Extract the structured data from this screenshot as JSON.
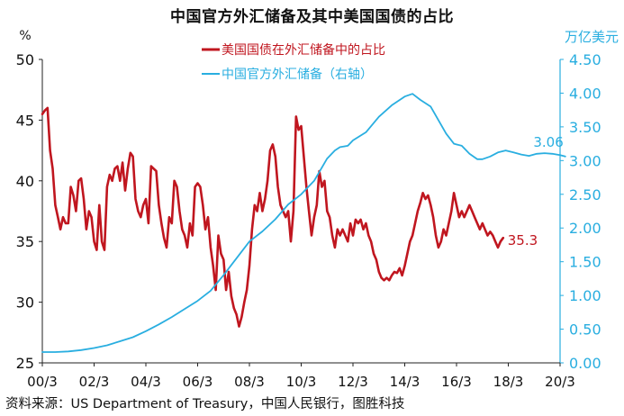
{
  "chart_data": {
    "type": "line",
    "title": "中国官方外汇储备及其中美国国债的占比",
    "left_unit": "%",
    "right_unit": "万亿美元",
    "x_tick_labels": [
      "00/3",
      "02/3",
      "04/3",
      "06/3",
      "08/3",
      "10/3",
      "12/3",
      "14/3",
      "16/3",
      "18/3",
      "20/3"
    ],
    "y_left": {
      "min": 25,
      "max": 50,
      "ticks": [
        "25",
        "30",
        "35",
        "40",
        "45",
        "50"
      ]
    },
    "y_right": {
      "min": 0,
      "max": 4.5,
      "ticks": [
        "0.00",
        "0.50",
        "1.00",
        "1.50",
        "2.00",
        "2.50",
        "3.00",
        "3.50",
        "4.00",
        "4.50"
      ]
    },
    "series": [
      {
        "name": "美国国债在外汇储备中的占比",
        "axis": "left",
        "color": "#c0161f",
        "end_label": "35.3",
        "points": [
          [
            0.0,
            45.5
          ],
          [
            0.1,
            45.8
          ],
          [
            0.2,
            46.0
          ],
          [
            0.3,
            42.5
          ],
          [
            0.4,
            41.0
          ],
          [
            0.5,
            38.0
          ],
          [
            0.6,
            37.0
          ],
          [
            0.7,
            36.0
          ],
          [
            0.8,
            37.0
          ],
          [
            0.9,
            36.5
          ],
          [
            1.0,
            36.5
          ],
          [
            1.1,
            39.5
          ],
          [
            1.2,
            38.8
          ],
          [
            1.3,
            37.5
          ],
          [
            1.4,
            40.0
          ],
          [
            1.5,
            40.2
          ],
          [
            1.6,
            38.5
          ],
          [
            1.7,
            36.0
          ],
          [
            1.8,
            37.5
          ],
          [
            1.9,
            37.0
          ],
          [
            2.0,
            35.0
          ],
          [
            2.1,
            34.3
          ],
          [
            2.2,
            38.0
          ],
          [
            2.3,
            35.0
          ],
          [
            2.4,
            34.3
          ],
          [
            2.5,
            39.5
          ],
          [
            2.6,
            40.5
          ],
          [
            2.7,
            40.0
          ],
          [
            2.8,
            41.0
          ],
          [
            2.9,
            41.2
          ],
          [
            3.0,
            40.0
          ],
          [
            3.1,
            41.5
          ],
          [
            3.2,
            39.2
          ],
          [
            3.3,
            41.0
          ],
          [
            3.4,
            42.3
          ],
          [
            3.5,
            42.0
          ],
          [
            3.6,
            38.5
          ],
          [
            3.7,
            37.5
          ],
          [
            3.8,
            37.0
          ],
          [
            3.9,
            38.0
          ],
          [
            4.0,
            38.5
          ],
          [
            4.1,
            36.5
          ],
          [
            4.2,
            41.2
          ],
          [
            4.3,
            41.0
          ],
          [
            4.4,
            40.8
          ],
          [
            4.5,
            38.0
          ],
          [
            4.6,
            36.5
          ],
          [
            4.7,
            35.3
          ],
          [
            4.8,
            34.5
          ],
          [
            4.9,
            37.0
          ],
          [
            5.0,
            36.5
          ],
          [
            5.1,
            40.0
          ],
          [
            5.2,
            39.5
          ],
          [
            5.3,
            37.5
          ],
          [
            5.4,
            36.0
          ],
          [
            5.5,
            35.5
          ],
          [
            5.6,
            34.5
          ],
          [
            5.7,
            36.5
          ],
          [
            5.8,
            35.5
          ],
          [
            5.9,
            39.5
          ],
          [
            6.0,
            39.8
          ],
          [
            6.1,
            39.5
          ],
          [
            6.2,
            38.0
          ],
          [
            6.3,
            36.0
          ],
          [
            6.4,
            37.0
          ],
          [
            6.5,
            34.5
          ],
          [
            6.6,
            33.0
          ],
          [
            6.7,
            31.0
          ],
          [
            6.8,
            35.5
          ],
          [
            6.9,
            34.0
          ],
          [
            7.0,
            33.5
          ],
          [
            7.1,
            31.0
          ],
          [
            7.2,
            32.5
          ],
          [
            7.3,
            30.5
          ],
          [
            7.4,
            29.5
          ],
          [
            7.5,
            29.0
          ],
          [
            7.6,
            28.0
          ],
          [
            7.7,
            28.8
          ],
          [
            7.8,
            30.0
          ],
          [
            7.9,
            31.0
          ],
          [
            8.0,
            33.0
          ],
          [
            8.1,
            36.0
          ],
          [
            8.2,
            38.0
          ],
          [
            8.3,
            37.5
          ],
          [
            8.4,
            39.0
          ],
          [
            8.5,
            37.5
          ],
          [
            8.6,
            38.5
          ],
          [
            8.7,
            40.0
          ],
          [
            8.8,
            42.5
          ],
          [
            8.9,
            43.0
          ],
          [
            9.0,
            42.0
          ],
          [
            9.1,
            39.5
          ],
          [
            9.2,
            38.0
          ],
          [
            9.3,
            37.5
          ],
          [
            9.4,
            37.0
          ],
          [
            9.5,
            37.5
          ],
          [
            9.6,
            35.0
          ],
          [
            9.7,
            37.5
          ],
          [
            9.8,
            45.3
          ],
          [
            9.9,
            44.2
          ],
          [
            10.0,
            44.5
          ],
          [
            10.1,
            42.0
          ],
          [
            10.2,
            39.5
          ],
          [
            10.3,
            37.5
          ],
          [
            10.4,
            35.5
          ],
          [
            10.5,
            37.0
          ],
          [
            10.6,
            38.0
          ],
          [
            10.7,
            40.8
          ],
          [
            10.8,
            39.5
          ],
          [
            10.9,
            40.0
          ],
          [
            11.0,
            37.5
          ],
          [
            11.1,
            37.0
          ],
          [
            11.2,
            35.5
          ],
          [
            11.3,
            34.5
          ],
          [
            11.4,
            36.0
          ],
          [
            11.5,
            35.5
          ],
          [
            11.6,
            36.0
          ],
          [
            11.7,
            35.5
          ],
          [
            11.8,
            35.0
          ],
          [
            11.9,
            36.5
          ],
          [
            12.0,
            35.5
          ],
          [
            12.1,
            36.8
          ],
          [
            12.2,
            36.5
          ],
          [
            12.3,
            36.8
          ],
          [
            12.4,
            36.0
          ],
          [
            12.5,
            36.5
          ],
          [
            12.6,
            35.5
          ],
          [
            12.7,
            35.0
          ],
          [
            12.8,
            34.0
          ],
          [
            12.9,
            33.5
          ],
          [
            13.0,
            32.5
          ],
          [
            13.1,
            32.0
          ],
          [
            13.2,
            31.8
          ],
          [
            13.3,
            32.0
          ],
          [
            13.4,
            31.8
          ],
          [
            13.5,
            32.2
          ],
          [
            13.6,
            32.5
          ],
          [
            13.7,
            32.4
          ],
          [
            13.8,
            32.8
          ],
          [
            13.9,
            32.2
          ],
          [
            14.0,
            33.0
          ],
          [
            14.1,
            34.0
          ],
          [
            14.2,
            35.0
          ],
          [
            14.3,
            35.5
          ],
          [
            14.4,
            36.5
          ],
          [
            14.5,
            37.5
          ],
          [
            14.6,
            38.2
          ],
          [
            14.7,
            39.0
          ],
          [
            14.8,
            38.5
          ],
          [
            14.9,
            38.8
          ],
          [
            15.0,
            38.0
          ],
          [
            15.1,
            37.0
          ],
          [
            15.2,
            35.5
          ],
          [
            15.3,
            34.5
          ],
          [
            15.4,
            35.0
          ],
          [
            15.5,
            36.0
          ],
          [
            15.6,
            35.5
          ],
          [
            15.7,
            36.5
          ],
          [
            15.8,
            37.5
          ],
          [
            15.9,
            39.0
          ],
          [
            16.0,
            38.0
          ],
          [
            16.1,
            37.0
          ],
          [
            16.2,
            37.5
          ],
          [
            16.3,
            37.0
          ],
          [
            16.4,
            37.5
          ],
          [
            16.5,
            38.0
          ],
          [
            16.6,
            37.5
          ],
          [
            16.7,
            37.0
          ],
          [
            16.8,
            36.5
          ],
          [
            16.9,
            36.0
          ],
          [
            17.0,
            36.5
          ],
          [
            17.1,
            36.0
          ],
          [
            17.2,
            35.5
          ],
          [
            17.3,
            35.8
          ],
          [
            17.4,
            35.5
          ],
          [
            17.5,
            35.0
          ],
          [
            17.6,
            34.5
          ],
          [
            17.7,
            35.0
          ],
          [
            17.8,
            35.3
          ]
        ]
      },
      {
        "name": "中国官方外汇储备（右轴）",
        "axis": "right",
        "color": "#29aee0",
        "end_label": "3.06",
        "points": [
          [
            0.0,
            0.16
          ],
          [
            0.5,
            0.16
          ],
          [
            1.0,
            0.17
          ],
          [
            1.5,
            0.19
          ],
          [
            2.0,
            0.22
          ],
          [
            2.5,
            0.26
          ],
          [
            3.0,
            0.32
          ],
          [
            3.5,
            0.38
          ],
          [
            4.0,
            0.47
          ],
          [
            4.5,
            0.57
          ],
          [
            5.0,
            0.68
          ],
          [
            5.5,
            0.8
          ],
          [
            6.0,
            0.92
          ],
          [
            6.5,
            1.07
          ],
          [
            7.0,
            1.3
          ],
          [
            7.5,
            1.55
          ],
          [
            8.0,
            1.8
          ],
          [
            8.5,
            1.95
          ],
          [
            9.0,
            2.13
          ],
          [
            9.5,
            2.35
          ],
          [
            10.0,
            2.5
          ],
          [
            10.5,
            2.7
          ],
          [
            11.0,
            3.03
          ],
          [
            11.3,
            3.15
          ],
          [
            11.5,
            3.2
          ],
          [
            11.8,
            3.22
          ],
          [
            12.0,
            3.3
          ],
          [
            12.5,
            3.42
          ],
          [
            13.0,
            3.65
          ],
          [
            13.5,
            3.82
          ],
          [
            14.0,
            3.95
          ],
          [
            14.3,
            3.99
          ],
          [
            14.6,
            3.9
          ],
          [
            15.0,
            3.8
          ],
          [
            15.3,
            3.6
          ],
          [
            15.6,
            3.4
          ],
          [
            15.9,
            3.25
          ],
          [
            16.2,
            3.22
          ],
          [
            16.5,
            3.1
          ],
          [
            16.8,
            3.02
          ],
          [
            17.0,
            3.02
          ],
          [
            17.3,
            3.06
          ],
          [
            17.6,
            3.12
          ],
          [
            17.9,
            3.15
          ],
          [
            18.2,
            3.12
          ],
          [
            18.5,
            3.09
          ],
          [
            18.8,
            3.07
          ],
          [
            19.1,
            3.1
          ],
          [
            19.4,
            3.11
          ],
          [
            19.7,
            3.1
          ],
          [
            20.0,
            3.08
          ],
          [
            20.2,
            3.06
          ]
        ]
      }
    ],
    "source_note": "资料来源：US Department of Treasury，中国人民银行，图胜科技"
  }
}
